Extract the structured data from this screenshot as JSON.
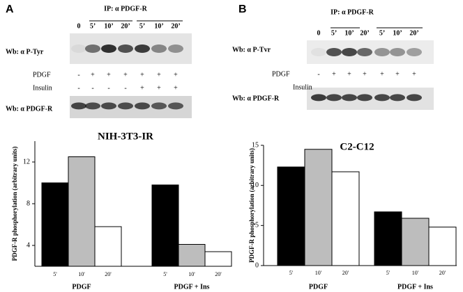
{
  "blots": [
    {
      "panel": "A",
      "ip": "IP: α PDGF-R",
      "times": [
        "0",
        "5’",
        "10’",
        "20’",
        "5’",
        "10’",
        "20’"
      ],
      "ptyr_label": "Wb: α P-Tyr",
      "pdgf_label": "PDGF",
      "pdgf_signs": [
        "-",
        "+",
        "+",
        "+",
        "+",
        "+",
        "+"
      ],
      "insulin_label": "Insulin",
      "insulin_signs": [
        "-",
        "-",
        "-",
        "-",
        "+",
        "+",
        "+"
      ],
      "pdgfr_label": "Wb: α PDGF-R"
    },
    {
      "panel": "B",
      "ip": "IP: α PDGF-R",
      "times": [
        "0",
        "5’",
        "10’",
        "20’",
        "5’",
        "10’",
        "20’"
      ],
      "ptyr_label": "Wb: α P-Tvr",
      "pdgf_label": "PDGF",
      "pdgf_signs": [
        "-",
        "+",
        "+",
        "+",
        "+",
        "+",
        "+"
      ],
      "insulin_label": "Insulin",
      "pdgfr_label": "Wb: α PDGF-R"
    }
  ],
  "chart_data": [
    {
      "type": "bar",
      "title": "NIH-3T3-IR",
      "y_label": "PDGF-R phosphorylation (arbitrary units)",
      "groups": [
        "PDGF",
        "PDGF + Ins"
      ],
      "series": [
        {
          "name": "5'",
          "color": "#000000",
          "values": [
            10,
            9.8
          ]
        },
        {
          "name": "10'",
          "color": "#bdbdbd",
          "values": [
            12.5,
            4.1
          ]
        },
        {
          "name": "20'",
          "color": "#ffffff",
          "values": [
            5.8,
            3.4
          ]
        }
      ],
      "ylim": [
        2,
        14
      ],
      "yticks": [
        4,
        8,
        12
      ]
    },
    {
      "type": "bar",
      "title": "C2-C12",
      "y_label": "PDGF-R phosphorylation (arbitrary  units)",
      "groups": [
        "PDGF",
        "PDGF + Ins"
      ],
      "series": [
        {
          "name": "5'",
          "color": "#000000",
          "values": [
            12.3,
            6.7
          ]
        },
        {
          "name": "10'",
          "color": "#bdbdbd",
          "values": [
            14.5,
            5.9
          ]
        },
        {
          "name": "20'",
          "color": "#ffffff",
          "values": [
            11.7,
            4.8
          ]
        }
      ],
      "ylim": [
        0,
        15
      ],
      "yticks": [
        0,
        5,
        10,
        15
      ]
    }
  ]
}
